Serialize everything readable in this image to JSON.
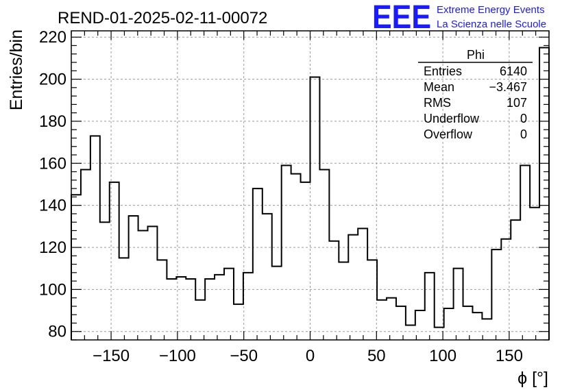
{
  "title": "REND-01-2025-02-11-00072",
  "logo": {
    "mark": "EEE",
    "line1": "Extreme Energy Events",
    "line2": "La Scienza nelle Scuole",
    "color": "#1a1aff"
  },
  "stats_box": {
    "title": "Phi",
    "rows": [
      {
        "label": "Entries",
        "value": "6140"
      },
      {
        "label": "Mean",
        "value": "−3.467"
      },
      {
        "label": "RMS",
        "value": "107"
      },
      {
        "label": "Underflow",
        "value": "0"
      },
      {
        "label": "Overflow",
        "value": "0"
      }
    ]
  },
  "chart_data": {
    "type": "bar",
    "style": "step-histogram",
    "title": "REND-01-2025-02-11-00072",
    "xlabel": "ϕ [°]",
    "ylabel": "Entries/bin",
    "xlim": [
      -180,
      180
    ],
    "ylim": [
      76,
      223
    ],
    "bin_width": 7.2,
    "xticks": [
      -150,
      -100,
      -50,
      0,
      50,
      100,
      150
    ],
    "xtick_labels": [
      "−150",
      "−100",
      "−50",
      "0",
      "50",
      "100",
      "150"
    ],
    "yticks": [
      80,
      100,
      120,
      140,
      160,
      180,
      200,
      220
    ],
    "ytick_labels": [
      "80",
      "100",
      "120",
      "140",
      "160",
      "180",
      "200",
      "220"
    ],
    "grid": true,
    "bin_edges_start": -180,
    "values": [
      145,
      157,
      173,
      132,
      151,
      115,
      135,
      128,
      130,
      114,
      105,
      106,
      105,
      95,
      105,
      107,
      110,
      93,
      108,
      148,
      136,
      111,
      159,
      155,
      151,
      201,
      157,
      123,
      113,
      126,
      129,
      114,
      95,
      96,
      92,
      83,
      90,
      108,
      82,
      91,
      110,
      92,
      89,
      86,
      119,
      124,
      133,
      159,
      139,
      215
    ]
  }
}
